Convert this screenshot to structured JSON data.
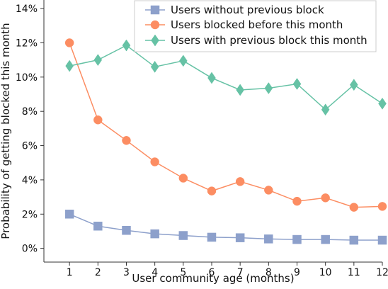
{
  "chart_data": {
    "type": "line",
    "xlabel": "User community age (months)",
    "ylabel": "Probability of getting blocked this month",
    "x": [
      1,
      2,
      3,
      4,
      5,
      6,
      7,
      8,
      9,
      10,
      11,
      12
    ],
    "xticks": [
      "1",
      "2",
      "3",
      "4",
      "5",
      "6",
      "7",
      "8",
      "9",
      "10",
      "11",
      "12"
    ],
    "xlim": [
      0.1,
      12.0
    ],
    "ylim": [
      -0.8,
      14.5
    ],
    "yticks": [
      0,
      2,
      4,
      6,
      8,
      10,
      12,
      14
    ],
    "ytick_labels": [
      "0%",
      "2%",
      "4%",
      "6%",
      "8%",
      "10%",
      "12%",
      "14%"
    ],
    "grid": false,
    "legend_position": "top-right",
    "series": [
      {
        "name": "Users without previous block",
        "color": "#8da0cb",
        "marker": "square",
        "values": [
          2.0,
          1.3,
          1.05,
          0.85,
          0.75,
          0.65,
          0.62,
          0.55,
          0.52,
          0.52,
          0.48,
          0.48
        ]
      },
      {
        "name": "Users blocked before this month",
        "color": "#fc8d62",
        "marker": "circle",
        "values": [
          12.0,
          7.5,
          6.3,
          5.05,
          4.1,
          3.35,
          3.9,
          3.4,
          2.75,
          2.95,
          2.4,
          2.45
        ]
      },
      {
        "name": "Users with previous block this month",
        "color": "#66c2a5",
        "marker": "diamond",
        "values": [
          10.65,
          11.0,
          11.85,
          10.6,
          10.95,
          9.95,
          9.25,
          9.35,
          9.6,
          8.1,
          9.55,
          8.45
        ]
      }
    ]
  }
}
